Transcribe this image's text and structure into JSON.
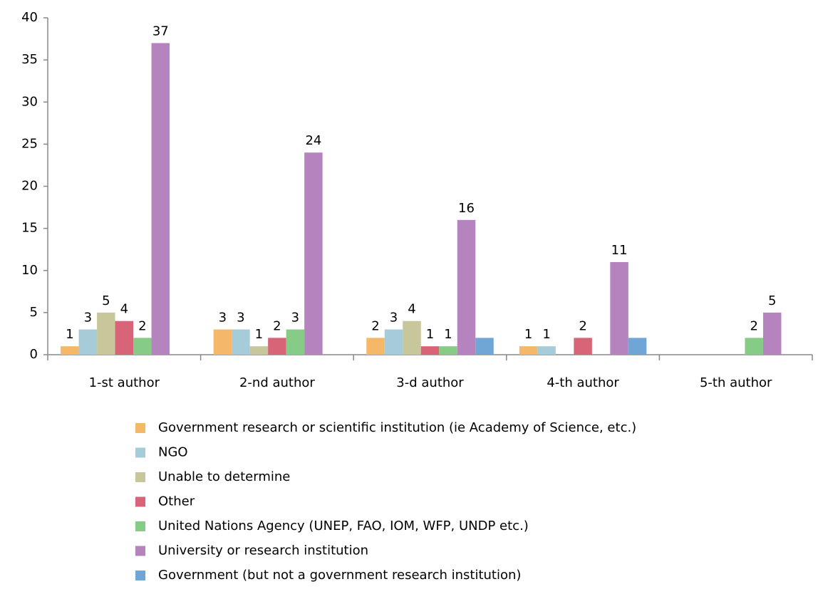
{
  "chart_data": {
    "type": "bar",
    "categories": [
      "1-st author",
      "2-nd author",
      "3-d author",
      "4-th author",
      "5-th author"
    ],
    "series": [
      {
        "name": "Government research or scientific institution  (ie Academy of Science, etc.)",
        "color": "#f5b868",
        "values": [
          1,
          3,
          2,
          1,
          null
        ]
      },
      {
        "name": "NGO",
        "color": "#a6ccd9",
        "values": [
          3,
          3,
          3,
          1,
          null
        ]
      },
      {
        "name": "Unable to determine",
        "color": "#c7c79b",
        "values": [
          5,
          1,
          4,
          null,
          null
        ]
      },
      {
        "name": "Other",
        "color": "#d86478",
        "values": [
          4,
          2,
          1,
          2,
          null
        ]
      },
      {
        "name": "United Nations Agency (UNEP,  FAO, IOM,  WFP,  UNDP  etc.)",
        "color": "#87cc86",
        "values": [
          2,
          3,
          1,
          null,
          2
        ]
      },
      {
        "name": "University or research institution",
        "color": "#b584bf",
        "values": [
          37,
          24,
          16,
          11,
          5
        ]
      },
      {
        "name": "Government (but not a government research institution)",
        "color": "#6fa6d5",
        "values": [
          null,
          null,
          2,
          2,
          null
        ],
        "show_labels": false
      }
    ],
    "ylim": [
      0,
      40
    ],
    "yticks": [
      0,
      5,
      10,
      15,
      20,
      25,
      30,
      35,
      40
    ],
    "grid": false,
    "legend": "bottom"
  }
}
